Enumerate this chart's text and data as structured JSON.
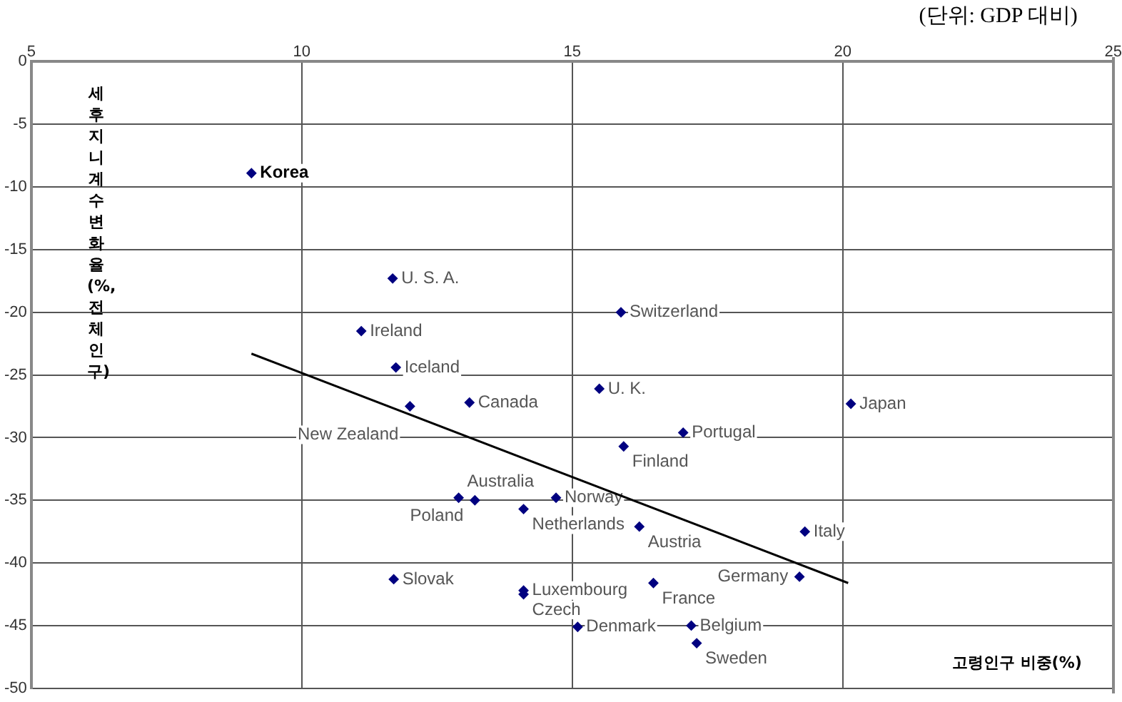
{
  "chart_data": {
    "type": "scatter",
    "ylabel": "세후 지니계수 변화율(%, 전체인구)",
    "xlabel": "고령인구 비중(%)",
    "annotations": [
      "(단위: GDP 대비)",
      {
        "text": "Korea",
        "x": 9.07,
        "y": -8.9
      },
      {
        "text": "U. S. A.",
        "x": 11.68,
        "y": -17.3
      },
      {
        "text": "Ireland",
        "x": 11.1,
        "y": -21.5
      },
      {
        "text": "Iceland",
        "x": 11.74,
        "y": -24.4
      },
      {
        "text": "New Zealand",
        "x": 12.0,
        "y": -27.5
      },
      {
        "text": "Canada",
        "x": 13.1,
        "y": -27.2
      },
      {
        "text": "Australia",
        "x": 12.9,
        "y": -34.8
      },
      {
        "text": "Poland",
        "x": 13.2,
        "y": -35.0
      },
      {
        "text": "Netherlands",
        "x": 14.1,
        "y": -35.7
      },
      {
        "text": "Norway",
        "x": 14.7,
        "y": -34.8
      },
      {
        "text": "Slovak",
        "x": 11.7,
        "y": -41.3
      },
      {
        "text": "Luxembourg",
        "x": 14.1,
        "y": -42.2
      },
      {
        "text": "Czech",
        "x": 14.1,
        "y": -42.5
      },
      {
        "text": "U. K.",
        "x": 15.5,
        "y": -26.1
      },
      {
        "text": "Switzerland",
        "x": 15.9,
        "y": -20.0
      },
      {
        "text": "Japan",
        "x": 20.15,
        "y": -27.3
      },
      {
        "text": "Portugal",
        "x": 17.05,
        "y": -29.6
      },
      {
        "text": "Finland",
        "x": 15.95,
        "y": -30.7
      },
      {
        "text": "Austria",
        "x": 16.24,
        "y": -37.1
      },
      {
        "text": "Italy",
        "x": 19.3,
        "y": -37.5
      },
      {
        "text": "Germany",
        "x": 19.2,
        "y": -41.1
      },
      {
        "text": "France",
        "x": 16.5,
        "y": -41.6
      },
      {
        "text": "Denmark",
        "x": 15.1,
        "y": -45.1
      },
      {
        "text": "Belgium",
        "x": 17.2,
        "y": -45.0
      },
      {
        "text": "Sweden",
        "x": 17.3,
        "y": -46.4
      }
    ],
    "series": [
      {
        "color": "#000080",
        "x": [
          9.07,
          11.68,
          11.1,
          11.74,
          12.0,
          13.1,
          12.9,
          13.2,
          14.1,
          14.7,
          11.7,
          14.1,
          14.1,
          15.5,
          15.9,
          20.15,
          17.05,
          15.95,
          16.24,
          19.3,
          19.2,
          16.5,
          15.1,
          17.2,
          17.3
        ],
        "values": [
          -8.9,
          -17.3,
          -21.5,
          -24.4,
          -27.5,
          -27.2,
          -34.8,
          -35.0,
          -35.7,
          -34.8,
          -41.3,
          -42.2,
          -42.5,
          -26.1,
          -20.0,
          -27.3,
          -29.6,
          -30.7,
          -37.1,
          -37.5,
          -41.1,
          -41.6,
          -45.1,
          -45.0,
          -46.4
        ]
      },
      {
        "type": "line",
        "marker": "none",
        "color": "#000000",
        "x": [
          9.07,
          20.1
        ],
        "values": [
          -23.3,
          -41.6
        ]
      }
    ],
    "xlim": [
      5,
      25
    ],
    "xticks": [
      5,
      10,
      15,
      20,
      25
    ],
    "ylim": [
      -50,
      0
    ],
    "yticks": [
      0,
      -5,
      -10,
      -15,
      -20,
      -25,
      -30,
      -35,
      -40,
      -45,
      -50
    ],
    "grid": true,
    "marker": "diamond",
    "legend": false
  }
}
